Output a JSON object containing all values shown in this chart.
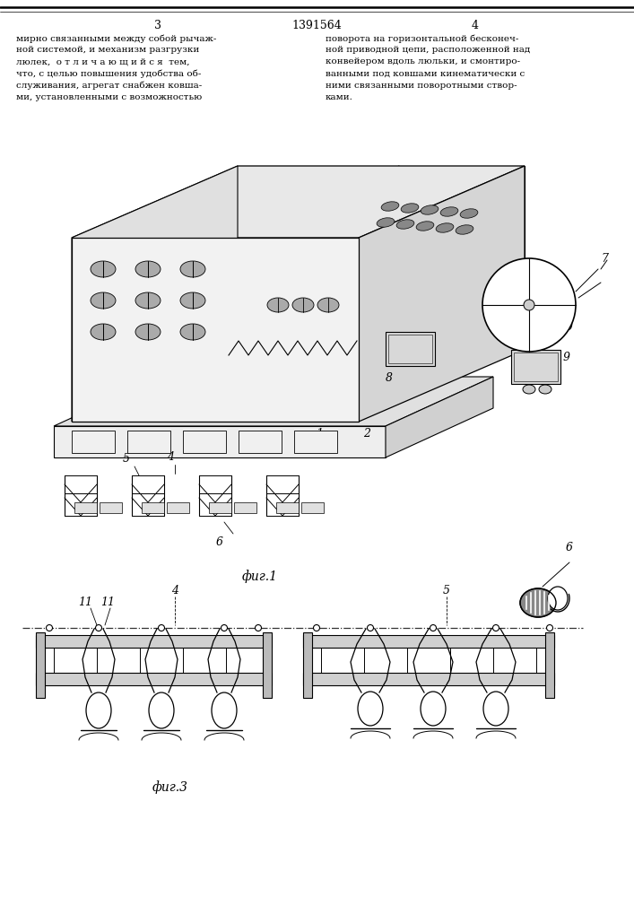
{
  "page_number_left": "3",
  "patent_number": "1391564",
  "page_number_right": "4",
  "text_left": [
    "мирно связанными между собой рычаж-",
    "ной системой, и механизм разгрузки",
    "люлек,  о т л и ч а ю щ и й с я  тем,",
    "что, с целью повышения удобства об-",
    "служивания, агрегат снабжен ковша-",
    "ми, установленными с возможностью"
  ],
  "text_right": [
    "поворота на горизонтальной бесконеч-",
    "ной приводной цепи, расположенной над",
    "конвейером вдоль люльки, и смонтиро-",
    "ванными под ковшами кинематически с",
    "ними связанными поворотными створ-",
    "ками."
  ],
  "fig1_caption": "фиг.1",
  "fig3_caption": "фиг.3",
  "bg_color": "#ffffff",
  "lc": "#000000"
}
